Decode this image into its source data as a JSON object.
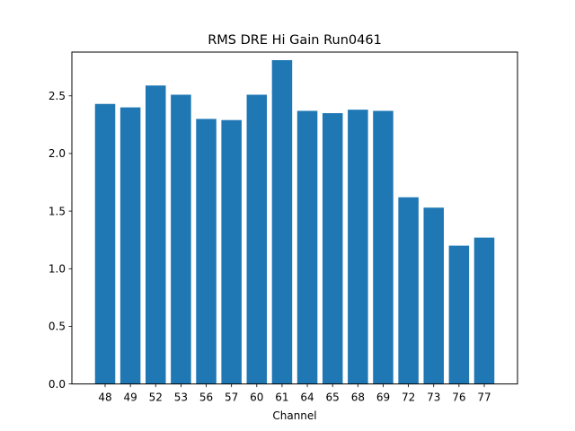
{
  "chart_data": {
    "type": "bar",
    "title": "RMS DRE Hi Gain Run0461",
    "xlabel": "Channel",
    "ylabel": "",
    "categories": [
      "48",
      "49",
      "52",
      "53",
      "56",
      "57",
      "60",
      "61",
      "64",
      "65",
      "68",
      "69",
      "72",
      "73",
      "76",
      "77"
    ],
    "values": [
      2.43,
      2.4,
      2.59,
      2.51,
      2.3,
      2.29,
      2.51,
      2.81,
      2.37,
      2.35,
      2.38,
      2.37,
      1.62,
      1.53,
      1.2,
      1.27
    ],
    "ylim": [
      0,
      2.88
    ],
    "yticks": [
      "0.0",
      "0.5",
      "1.0",
      "1.5",
      "2.0",
      "2.5"
    ],
    "bar_color": "#1f77b4",
    "grid": false,
    "legend": "none"
  }
}
